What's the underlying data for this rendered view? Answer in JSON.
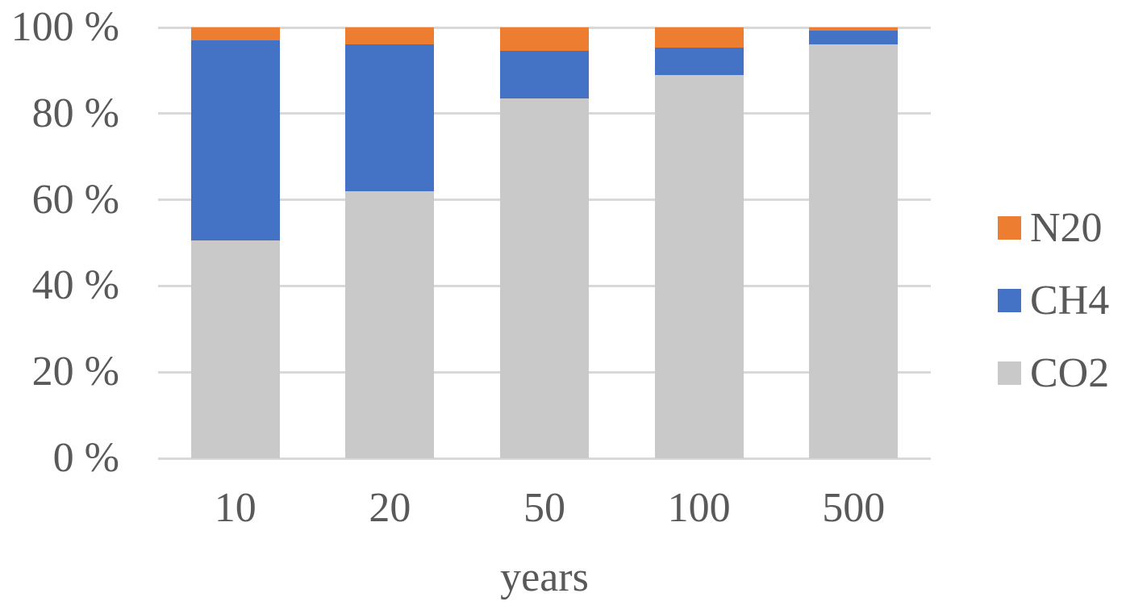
{
  "page": {
    "background": "#ffffff",
    "text_color": "#595959",
    "gridline_color": "#D9D9D9"
  },
  "chart_data": {
    "type": "bar",
    "variant": "100-percent-stacked-column",
    "categories": [
      "10",
      "20",
      "50",
      "100",
      "500"
    ],
    "series": [
      {
        "name": "CO2",
        "color": "#C9C9C9",
        "values": [
          50.5,
          62,
          83.5,
          89,
          96
        ]
      },
      {
        "name": "CH4",
        "color": "#4472C4",
        "values": [
          46.5,
          34,
          11,
          6.3,
          3.2
        ]
      },
      {
        "name": "N20",
        "color": "#ED7D31",
        "values": [
          3,
          4,
          5.5,
          4.7,
          0.8
        ]
      }
    ],
    "title": "",
    "xlabel": "years",
    "ylabel": "",
    "ylim": [
      0,
      100
    ],
    "y_tick_values": [
      0,
      20,
      40,
      60,
      80,
      100
    ],
    "y_tick_labels": [
      "0 %",
      "20 %",
      "40 %",
      "60 %",
      "80 %",
      "100 %"
    ],
    "grid": true,
    "legend_position": "right"
  },
  "legend": {
    "items": [
      {
        "label": "N20",
        "color": "#ED7D31"
      },
      {
        "label": "CH4",
        "color": "#4472C4"
      },
      {
        "label": "CO2",
        "color": "#C9C9C9"
      }
    ]
  }
}
